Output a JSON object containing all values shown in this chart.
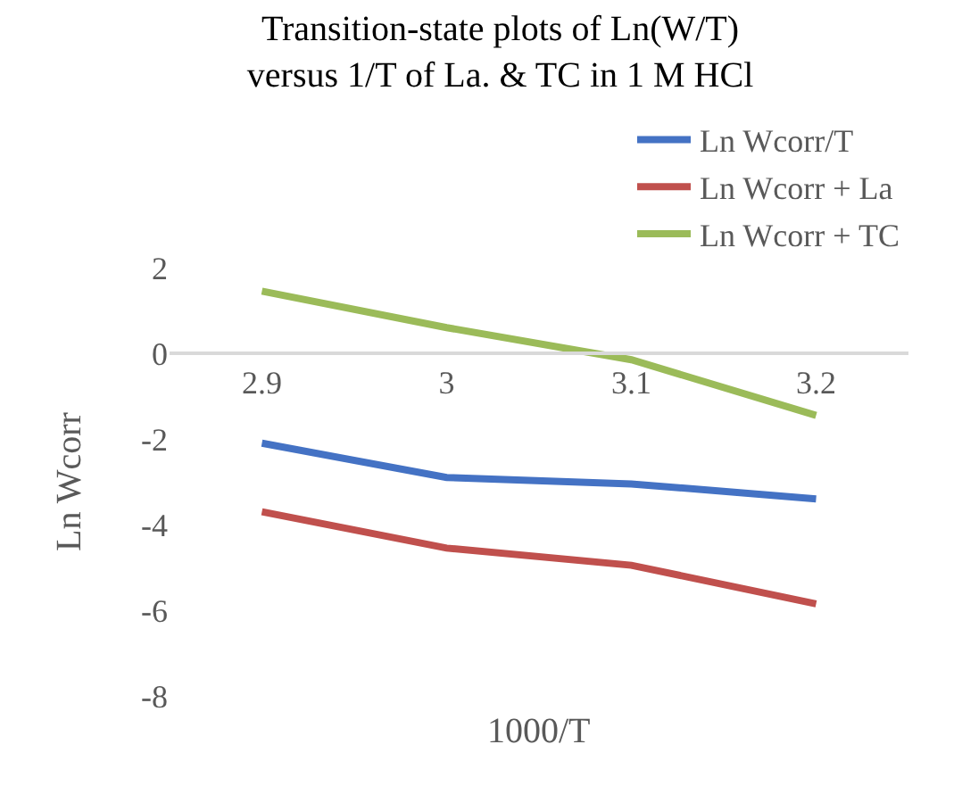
{
  "chart_data": {
    "type": "line",
    "title": "Transition-state plots of Ln(W/T) versus 1/T of La. & TC in 1 M HCl",
    "xlabel": "1000/T",
    "ylabel": "Ln Wcorr",
    "categories": [
      "2.9",
      "3",
      "3.1",
      "3.2"
    ],
    "series": [
      {
        "name": "Ln Wcorr/T",
        "color": "#4472c4",
        "values": [
          -2.1,
          -2.9,
          -3.05,
          -3.4
        ]
      },
      {
        "name": "Ln Wcorr + La",
        "color": "#c0504d",
        "values": [
          -3.7,
          -4.55,
          -4.95,
          -5.85
        ]
      },
      {
        "name": "Ln Wcorr + TC",
        "color": "#9bbb59",
        "values": [
          1.45,
          0.6,
          -0.15,
          -1.45
        ]
      }
    ],
    "ylim": [
      -8,
      2
    ],
    "yticks": [
      -8,
      -6,
      -4,
      -2,
      0,
      2
    ],
    "grid": false,
    "legend": "top right",
    "marker": "none",
    "line_style": "solid"
  }
}
